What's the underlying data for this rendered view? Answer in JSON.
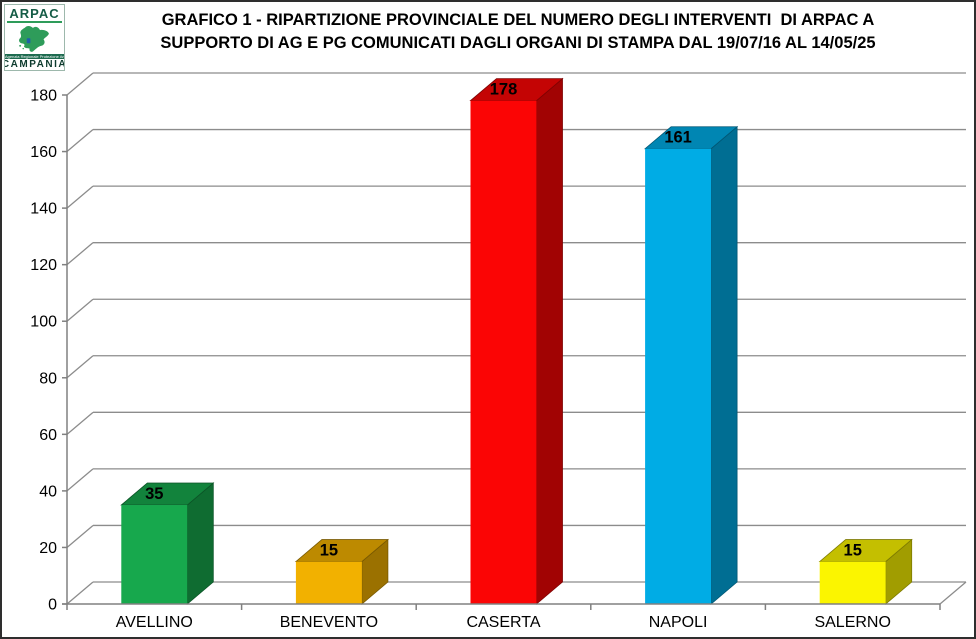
{
  "logo": {
    "name": "ARPAC",
    "banner": "Agenzia Regionale Protezione Ambientale",
    "region": "CAMPANIA",
    "map_color": "#2e9c5a",
    "emblem_color": "#1f5fa8"
  },
  "title": {
    "line1": "GRAFICO 1 - RIPARTIZIONE PROVINCIALE DEL NUMERO DEGLI INTERVENTI  DI ARPAC A",
    "line2": "SUPPORTO DI AG E PG COMUNICATI DAGLI ORGANI DI STAMPA DAL 19/07/16 AL 14/05/25"
  },
  "chart_data": {
    "type": "bar",
    "style": "3d-column",
    "title": "GRAFICO 1 - RIPARTIZIONE PROVINCIALE DEL NUMERO DEGLI INTERVENTI DI ARPAC A SUPPORTO DI AG E PG COMUNICATI DAGLI ORGANI DI STAMPA DAL 19/07/16 AL 14/05/25",
    "categories": [
      "AVELLINO",
      "BENEVENTO",
      "CASERTA",
      "NAPOLI",
      "SALERNO"
    ],
    "values": [
      35,
      15,
      178,
      161,
      15
    ],
    "bar_colors": [
      "#17a84d",
      "#f2b100",
      "#fb0505",
      "#00ace5",
      "#fbf500"
    ],
    "value_labels": true,
    "xlabel": "",
    "ylabel": "",
    "ylim": [
      0,
      180
    ],
    "yticks": [
      0,
      20,
      40,
      60,
      80,
      100,
      120,
      140,
      160,
      180
    ],
    "grid": true,
    "gridline_color": "#8c8c8c",
    "axis_color": "#808080",
    "text_color": "#000000",
    "legend_position": "none"
  }
}
